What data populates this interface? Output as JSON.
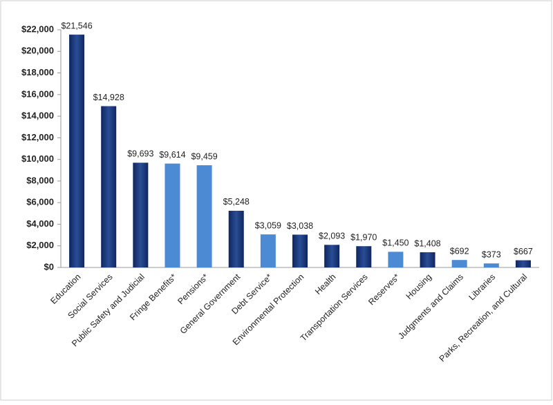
{
  "chart_data": {
    "type": "bar",
    "categories": [
      "Education",
      "Social Services",
      "Public Safety and Judicial",
      "Fringe Benefits*",
      "Pensions*",
      "General Government",
      "Debt Service*",
      "Environmental Protection",
      "Health",
      "Transportation Services",
      "Reserves*",
      "Housing",
      "Judgments and Claims",
      "Libraries",
      "Parks, Recreation, and Cultural"
    ],
    "values": [
      21546,
      14928,
      9693,
      9614,
      9459,
      5248,
      3059,
      3038,
      2093,
      1970,
      1450,
      1408,
      692,
      373,
      667
    ],
    "value_labels": [
      "$21,546",
      "$14,928",
      "$9,693",
      "$9,614",
      "$9,459",
      "$5,248",
      "$3,059",
      "$3,038",
      "$2,093",
      "$1,970",
      "$1,450",
      "$1,408",
      "$692",
      "$373",
      "$667"
    ],
    "colors": [
      "#1b3675",
      "#1b3675",
      "#1b3675",
      "#4d8ad4",
      "#4d8ad4",
      "#1b3675",
      "#4d8ad4",
      "#1b3675",
      "#1b3675",
      "#1b3675",
      "#4d8ad4",
      "#1b3675",
      "#4d8ad4",
      "#4d8ad4",
      "#1b3675"
    ],
    "ylim": [
      0,
      22000
    ],
    "yticks": [
      {
        "value": 0,
        "label": "$0"
      },
      {
        "value": 2000,
        "label": "$2,000"
      },
      {
        "value": 4000,
        "label": "$4,000"
      },
      {
        "value": 6000,
        "label": "$6,000"
      },
      {
        "value": 8000,
        "label": "$8,000"
      },
      {
        "value": 10000,
        "label": "$10,000"
      },
      {
        "value": 12000,
        "label": "$12,000"
      },
      {
        "value": 14000,
        "label": "$14,000"
      },
      {
        "value": 16000,
        "label": "$16,000"
      },
      {
        "value": 18000,
        "label": "$18,000"
      },
      {
        "value": 20000,
        "label": "$20,000"
      },
      {
        "value": 22000,
        "label": "$22,000"
      }
    ],
    "grid": false
  }
}
